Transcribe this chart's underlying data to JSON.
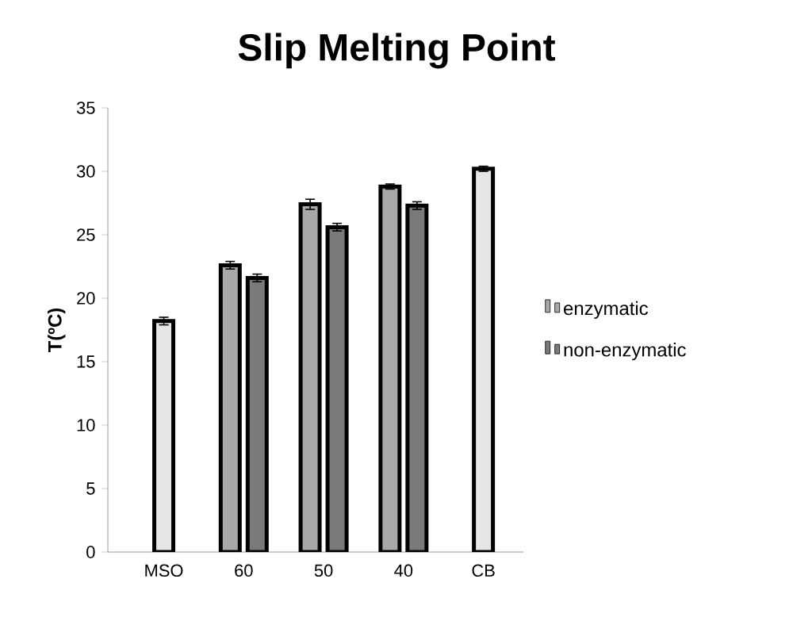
{
  "chart_data": {
    "type": "bar",
    "title": "Slip Melting Point",
    "ylabel": "T(ºC)",
    "categories": [
      "MSO",
      "60",
      "50",
      "40",
      "CB"
    ],
    "series": [
      {
        "name": "enzymatic",
        "color": "#a8a8a8",
        "values": [
          null,
          22.6,
          27.4,
          28.8,
          null
        ],
        "errors": [
          null,
          0.3,
          0.4,
          0.2,
          null
        ]
      },
      {
        "name": "non-enzymatic",
        "color": "#7a7a7a",
        "values": [
          null,
          21.6,
          25.6,
          27.3,
          null
        ],
        "errors": [
          null,
          0.3,
          0.3,
          0.3,
          null
        ]
      },
      {
        "color": "#e6e6e6",
        "values": [
          18.2,
          null,
          null,
          null,
          30.2
        ],
        "errors": [
          0.3,
          null,
          null,
          null,
          0.2
        ]
      }
    ],
    "ylim": [
      0,
      35
    ],
    "yticks": [
      0,
      5,
      10,
      15,
      20,
      25,
      30,
      35
    ],
    "legend": "right",
    "grid": false
  }
}
